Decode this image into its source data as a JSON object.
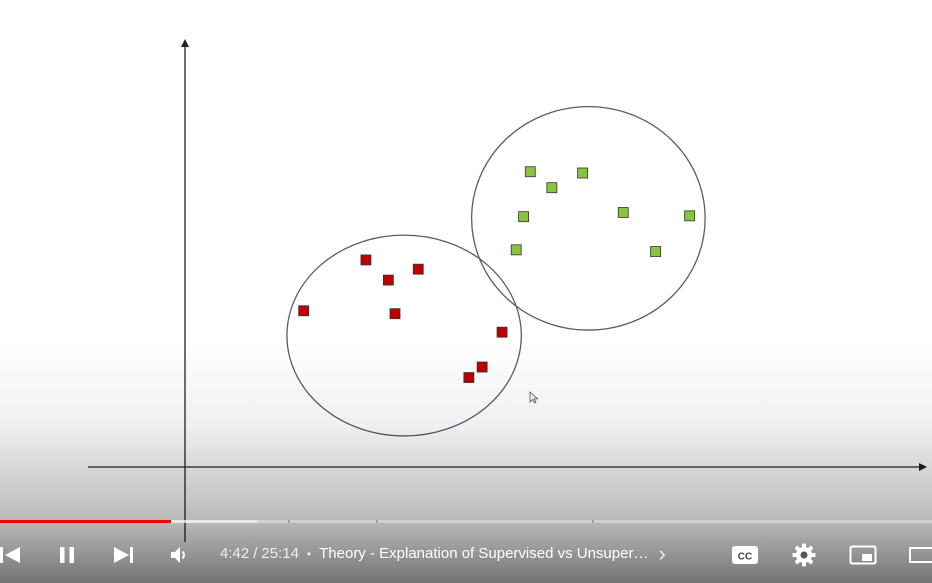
{
  "player": {
    "time_current": "4:42",
    "time_separator": "/",
    "time_total": "25:14",
    "bullet": "•",
    "chapter_title": "Theory - Explanation of Supervised vs Unsuper…",
    "chapter_arrow": "›",
    "progress_played_fraction": 0.183,
    "progress_buffered_fraction": 0.276,
    "accent_color": "#ff0000"
  },
  "controls": {
    "icons": [
      "previous-icon",
      "pause-icon",
      "next-icon",
      "volume-icon",
      "captions-icon",
      "settings-icon",
      "miniplayer-icon",
      "theater-icon"
    ],
    "captions_label": "CC"
  },
  "chart_data": {
    "type": "scatter",
    "title": "",
    "xlabel": "",
    "ylabel": "",
    "grid": false,
    "xlim": [
      0,
      100
    ],
    "ylim": [
      0,
      100
    ],
    "series": [
      {
        "color": "#c00000",
        "points": [
          [
            14.3,
            37.2
          ],
          [
            21.8,
            49.3
          ],
          [
            24.5,
            44.5
          ],
          [
            25.3,
            36.5
          ],
          [
            28.1,
            47.1
          ],
          [
            34.2,
            21.3
          ],
          [
            35.8,
            23.8
          ],
          [
            38.2,
            32.1
          ]
        ]
      },
      {
        "color": "#8ac43f",
        "points": [
          [
            39.9,
            51.7
          ],
          [
            40.8,
            59.6
          ],
          [
            41.6,
            70.3
          ],
          [
            44.2,
            66.5
          ],
          [
            47.9,
            70.0
          ],
          [
            52.8,
            60.6
          ],
          [
            56.7,
            51.3
          ],
          [
            60.8,
            59.8
          ]
        ]
      }
    ],
    "clusters": [
      {
        "cx": 26.4,
        "cy": 31.3,
        "rx": 27.9,
        "ry": 23.9,
        "color": "#5a5a70"
      },
      {
        "cx": 48.6,
        "cy": 59.2,
        "rx": 27.8,
        "ry": 26.6,
        "color": "#5a5a70"
      }
    ]
  }
}
